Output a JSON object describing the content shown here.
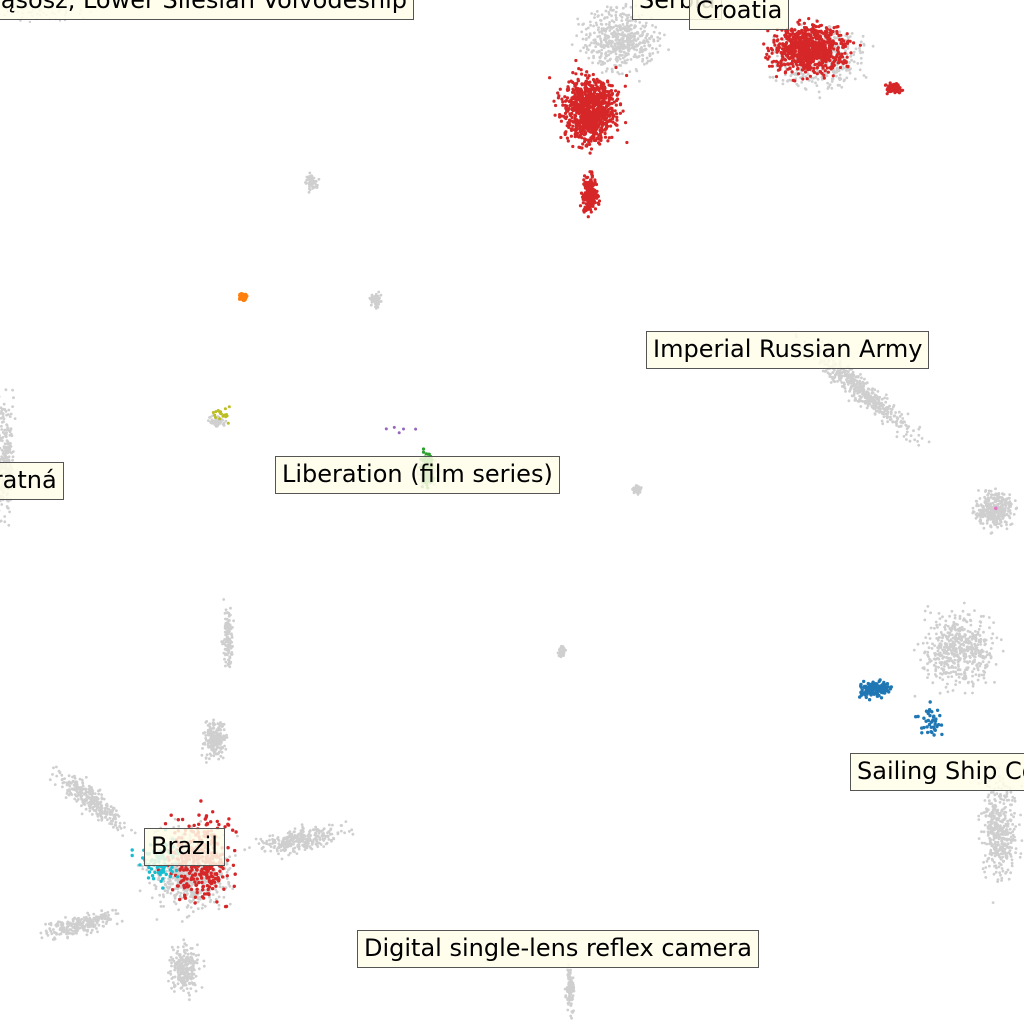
{
  "labels": [
    {
      "text": "Wąsosz, Lower Silesian Voivodeship",
      "pos": "top-left"
    },
    {
      "text": "Serbia",
      "pos": "top"
    },
    {
      "text": "Croatia",
      "pos": "top"
    },
    {
      "text": "Imperial Russian Army",
      "pos": "upper-right"
    },
    {
      "text": "Ostratná",
      "pos": "left"
    },
    {
      "text": "Liberation (film series)",
      "pos": "center-left"
    },
    {
      "text": "Sailing Ship Company",
      "pos": "right"
    },
    {
      "text": "Brazil",
      "pos": "lower-left"
    },
    {
      "text": "Digital single-lens reflex camera",
      "pos": "bottom"
    }
  ],
  "colors": {
    "background": "#ffffff",
    "base_points": "#cfcfcf",
    "red": "#d62728",
    "orange": "#ff7f0e",
    "green": "#2ca02c",
    "blue": "#1f77b4",
    "cyan": "#17becf",
    "olive": "#bcbd22",
    "purple": "#9467bd",
    "pink": "#e377c2",
    "label_bg": "#fffde7",
    "label_border": "#555555"
  }
}
